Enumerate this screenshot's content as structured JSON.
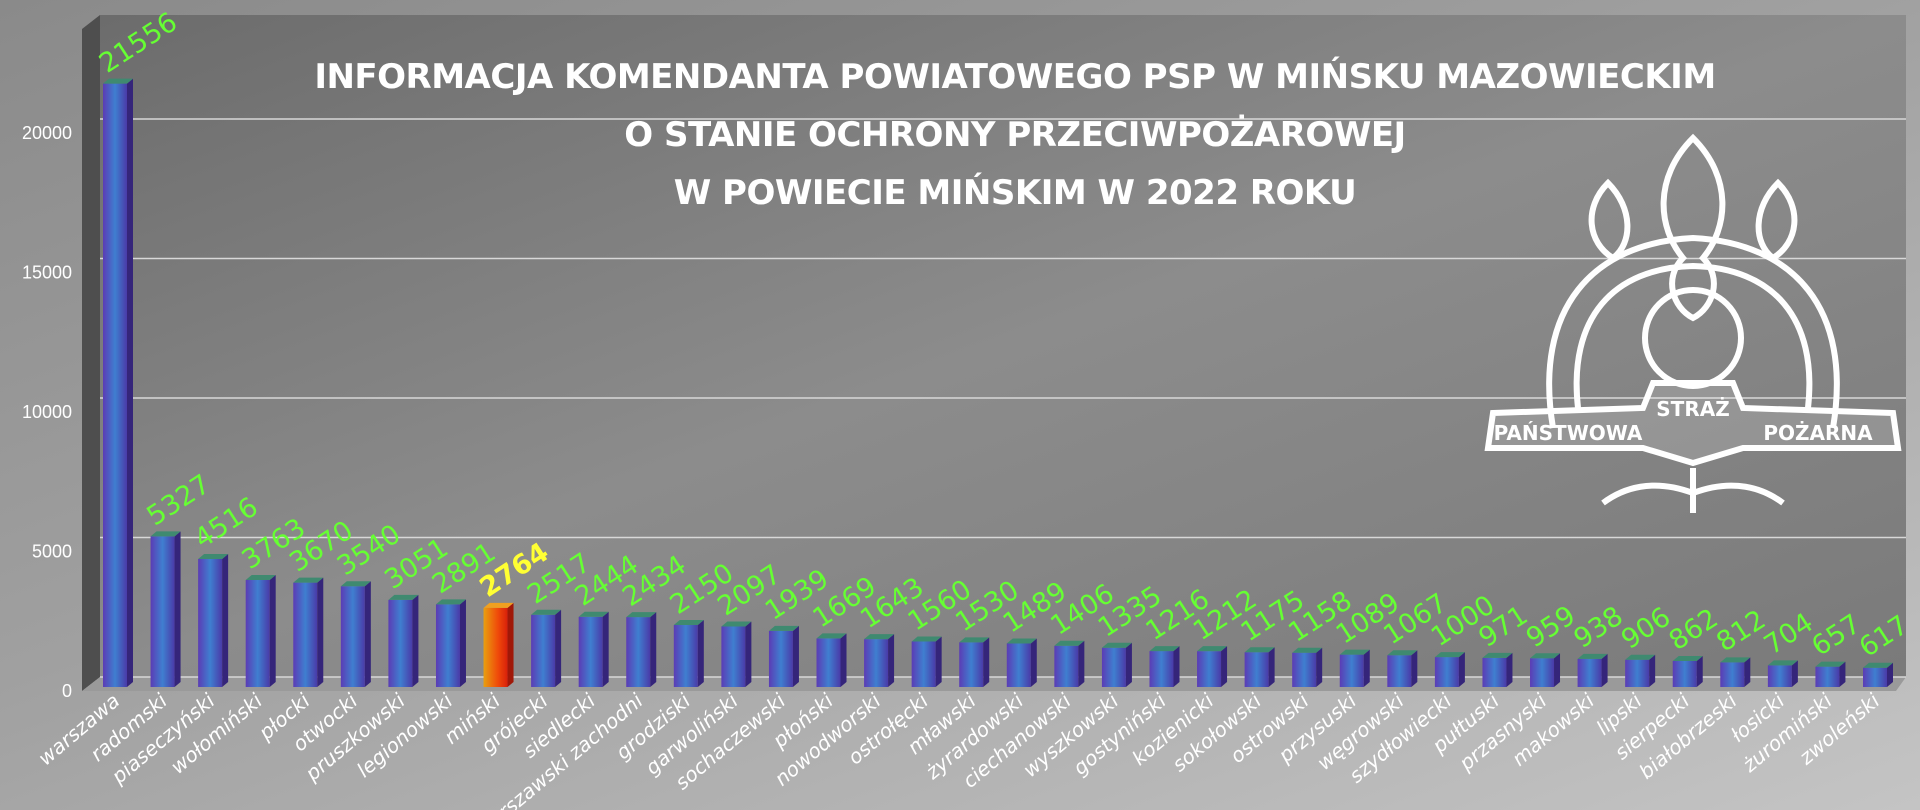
{
  "chart_data": {
    "type": "bar",
    "title": [
      "INFORMACJA KOMENDANTA POWIATOWEGO PSP W MIŃSKU MAZOWIECKIM",
      "O STANIE OCHRONY PRZECIWPOŻAROWEJ",
      "W POWIECIE MIŃSKIM W 2022 ROKU"
    ],
    "xlabel": "",
    "ylabel": "",
    "ylim": [
      0,
      22000
    ],
    "yticks": [
      0,
      5000,
      10000,
      15000,
      20000
    ],
    "grid": true,
    "legend": "none",
    "categories": [
      "warszawa",
      "radomski",
      "piaseczyński",
      "wołomiński",
      "płocki",
      "otwocki",
      "pruszkowski",
      "legionowski",
      "miński",
      "grójecki",
      "siedlecki",
      "warszawski zachodni",
      "grodziski",
      "garwoliński",
      "sochaczewski",
      "płoński",
      "nowodworski",
      "ostrołęcki",
      "mławski",
      "żyrardowski",
      "ciechanowski",
      "wyszkowski",
      "gostyniński",
      "kozienicki",
      "sokołowski",
      "ostrowski",
      "przysuski",
      "węgrowski",
      "szydłowiecki",
      "pułtuski",
      "przasnyski",
      "makowski",
      "lipski",
      "sierpecki",
      "białobrzeski",
      "łosicki",
      "żuromiński",
      "zwoleński"
    ],
    "values": [
      21556,
      5327,
      4516,
      3763,
      3670,
      3540,
      3051,
      2891,
      2764,
      2517,
      2444,
      2434,
      2150,
      2097,
      1939,
      1669,
      1643,
      1560,
      1530,
      1489,
      1406,
      1335,
      1216,
      1212,
      1175,
      1158,
      1089,
      1067,
      1000,
      971,
      959,
      938,
      906,
      862,
      812,
      704,
      657,
      617
    ],
    "highlight": "miński",
    "colors": {
      "bar": "#5a3fb8",
      "highlight_bar": "#e8400c",
      "label": "#66ff33",
      "highlight_label": "#ffff33"
    }
  },
  "logo": {
    "text": [
      "PAŃSTWOWA",
      "STRAŻ",
      "POŻARNA"
    ]
  }
}
